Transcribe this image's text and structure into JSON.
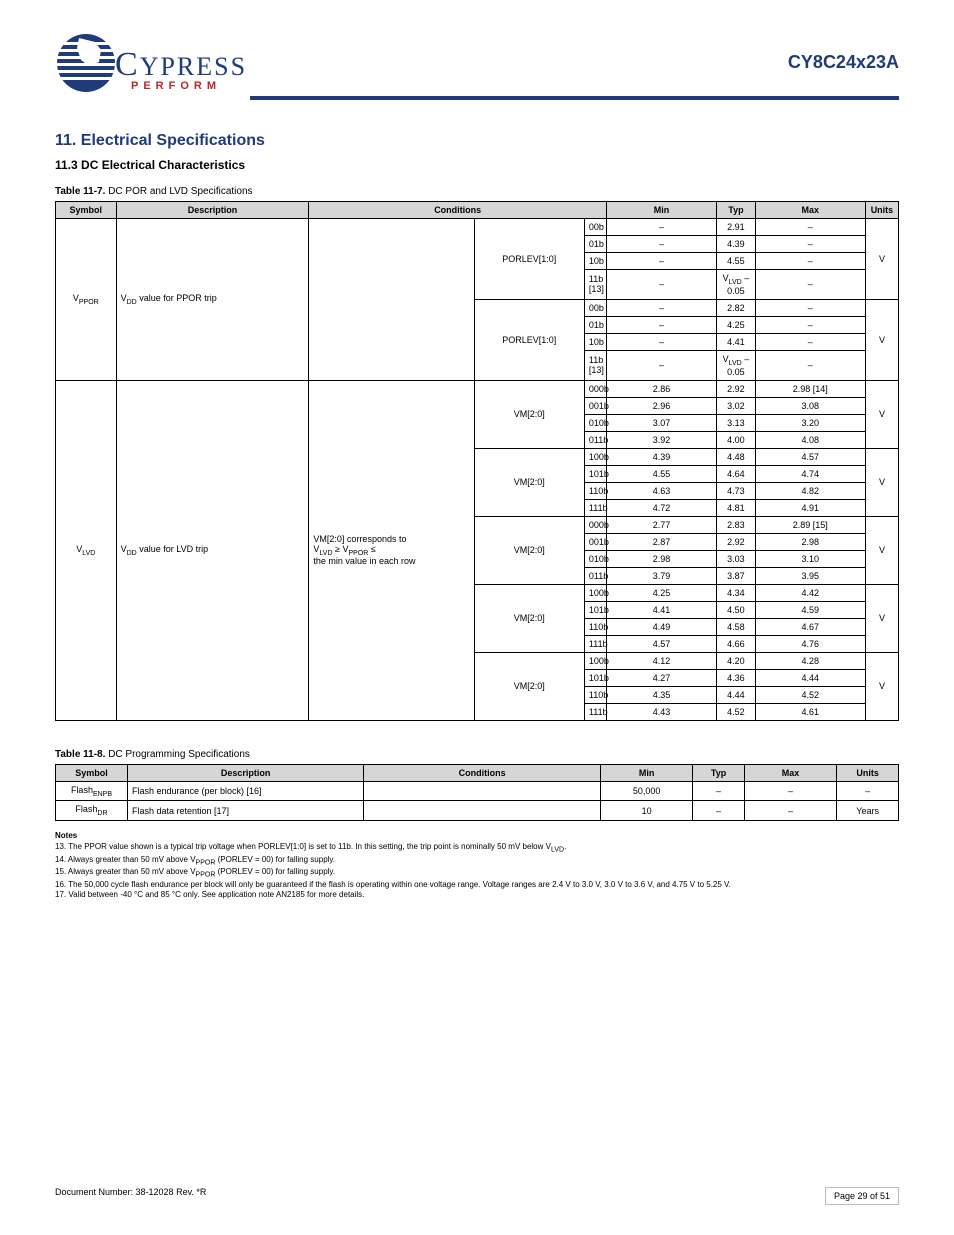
{
  "header": {
    "product": "CY8C24x23A",
    "logo_main": "CYPRESS",
    "logo_sub": "PERFORM"
  },
  "section11": {
    "title": "11.  Electrical Specifications",
    "sub1": "11.3  DC Electrical Characteristics"
  },
  "table11_7": {
    "caption_strong": "Table 11-7.",
    "caption_rest": "DC POR and LVD Specifications",
    "headers": {
      "symbol": "Symbol",
      "description": "Description",
      "conditions": "Conditions",
      "min": "Min",
      "typ": "Typ",
      "max": "Max",
      "units": "Units"
    },
    "group1": {
      "symbol_v": "V",
      "symbol_sub": "PPOR",
      "desc1": "V",
      "desc1_sub": "DD",
      "desc2": " value for PPOR trip",
      "cond": "PORLEV[1:0]",
      "rows": [
        {
          "sub": "00b",
          "typ": "2.91",
          "units": "V"
        },
        {
          "sub": "01b",
          "typ": "4.39",
          "units": ""
        },
        {
          "sub": "10b",
          "typ": "4.55",
          "units": ""
        },
        {
          "sub": "11b [13]",
          "typ": "V",
          "typ_sub": "LVD",
          "typ_tail": " – 0.05",
          "units": ""
        }
      ],
      "rows_n5": [
        {
          "n": "-5",
          "sub": "00b",
          "typ": "2.82",
          "units": "V"
        },
        {
          "n": "-5",
          "sub": "01b",
          "typ": "4.25",
          "units": ""
        },
        {
          "n": "-5",
          "sub": "10b",
          "typ": "4.41",
          "units": ""
        },
        {
          "n": "-5",
          "sub": "11b [13]",
          "typ": "V",
          "typ_sub": "LVD",
          "typ_tail": " – 0.05",
          "units": ""
        }
      ]
    },
    "group2": {
      "symbol_v": "V",
      "symbol_sub": "LVD",
      "desc1": "V",
      "desc1_sub": "DD",
      "desc2": " value for LVD trip",
      "cond_line1": "VM[2:0] corresponds to",
      "cond_line2_pre": "V",
      "cond_line2_sub1": "LVD",
      "cond_line2_mid": " > V",
      "cond_line2_sub2": "PPOR",
      "cond_line3": "the min value in each row",
      "cond_col1": "VM[2:0]",
      "groups": [
        {
          "n": "0",
          "units": "V",
          "rows": [
            {
              "sub": "000b",
              "min": "2.86",
              "typ": "2.92",
              "max": "2.98 [14]"
            },
            {
              "sub": "001b",
              "min": "2.96",
              "typ": "3.02",
              "max": "3.08"
            },
            {
              "sub": "010b",
              "min": "3.07",
              "typ": "3.13",
              "max": "3.20"
            },
            {
              "sub": "011b",
              "min": "3.92",
              "typ": "4.00",
              "max": "4.08"
            }
          ]
        },
        {
          "n": "1",
          "units": "V",
          "rows": [
            {
              "sub": "100b",
              "min": "4.39",
              "typ": "4.48",
              "max": "4.57"
            },
            {
              "sub": "101b",
              "min": "4.55",
              "typ": "4.64",
              "max": "4.74"
            },
            {
              "sub": "110b",
              "min": "4.63",
              "typ": "4.73",
              "max": "4.82"
            },
            {
              "sub": "111b",
              "min": "4.72",
              "typ": "4.81",
              "max": "4.91"
            }
          ]
        },
        {
          "n": "-5",
          "units": "V",
          "rows": [
            {
              "sub": "000b",
              "min": "2.77",
              "typ": "2.83",
              "max": "2.89 [15]"
            },
            {
              "sub": "001b",
              "min": "2.87",
              "typ": "2.92",
              "max": "2.98"
            },
            {
              "sub": "010b",
              "min": "2.98",
              "typ": "3.03",
              "max": "3.10"
            },
            {
              "sub": "011b",
              "min": "3.79",
              "typ": "3.87",
              "max": "3.95"
            }
          ]
        },
        {
          "n": "-4",
          "units": "V",
          "rows": [
            {
              "sub": "100b",
              "min": "4.25",
              "typ": "4.34",
              "max": "4.42"
            },
            {
              "sub": "101b",
              "min": "4.41",
              "typ": "4.50",
              "max": "4.59"
            },
            {
              "sub": "110b",
              "min": "4.49",
              "typ": "4.58",
              "max": "4.67"
            },
            {
              "sub": "111b",
              "min": "4.57",
              "typ": "4.66",
              "max": "4.76"
            }
          ]
        },
        {
          "n": "-3",
          "units": "V",
          "rows": [
            {
              "sub": "100b",
              "min": "4.12",
              "typ": "4.20",
              "max": "4.28"
            },
            {
              "sub": "101b",
              "min": "4.27",
              "typ": "4.36",
              "max": "4.44"
            },
            {
              "sub": "110b",
              "min": "4.35",
              "typ": "4.44",
              "max": "4.52"
            },
            {
              "sub": "111b",
              "min": "4.43",
              "typ": "4.52",
              "max": "4.61"
            }
          ]
        }
      ]
    }
  },
  "table11_8": {
    "caption_strong": "Table 11-8.",
    "caption_rest": "DC Programming Specifications",
    "headers": {
      "symbol": "Symbol",
      "description": "Description",
      "conditions": "Conditions",
      "min": "Min",
      "typ": "Typ",
      "max": "Max",
      "units": "Units"
    },
    "rows": [
      {
        "sym": "Flash",
        "sym_sub": "ENPB",
        "desc": "Flash endurance (per block) [16]",
        "min": "50,000",
        "typ": "–",
        "max": "–",
        "units": "–"
      },
      {
        "sym": "Flash",
        "sym_sub": "DR",
        "desc": "Flash data retention [17]",
        "min": "10",
        "typ": "–",
        "max": "–",
        "units": "Years"
      }
    ]
  },
  "notes": {
    "title": "Notes",
    "items": [
      {
        "n": "13.",
        "t": "The PPOR value shown is a typical trip voltage when PORLEV[1:0] is set to 11b. In this setting, the trip point is nominally 50 mV below V",
        "sub": "LVD",
        "tail": "."
      },
      {
        "n": "14.",
        "t": "Always greater than 50 mV above V",
        "sub": "PPOR",
        "tail": " (PORLEV = 00) for falling supply."
      },
      {
        "n": "15.",
        "t": "Always greater than 50 mV above V",
        "sub": "PPOR",
        "tail": " (PORLEV = 00) for falling supply."
      },
      {
        "n": "16.",
        "t": "The 50,000 cycle flash endurance per block will only be guaranteed if the flash is operating within one voltage range. Voltage ranges are 2.4 V to 3.0 V, 3.0 V to 3.6 V, and 4.75 V to 5.25 V.",
        "sub": "",
        "tail": ""
      },
      {
        "n": "17.",
        "t": "Valid between -40 °C and 85 °C only. See application note AN2185 for more details.",
        "sub": "",
        "tail": ""
      }
    ]
  },
  "footer": {
    "left": "Document Number: 38-12028 Rev. *R",
    "right": "Page 29 of 51"
  }
}
